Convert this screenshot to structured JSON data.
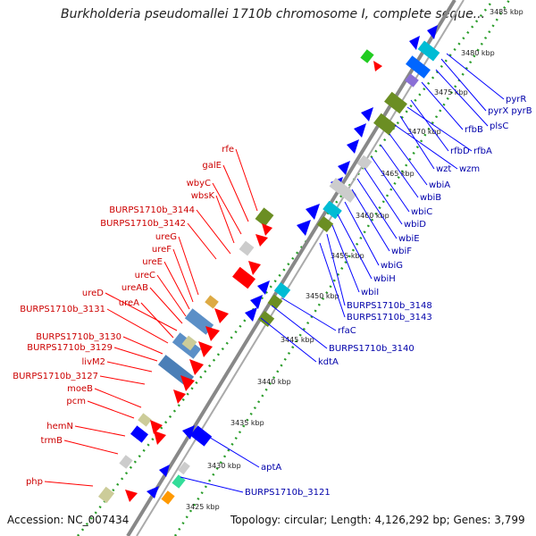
{
  "title": "Burkholderia pseudomallei 1710b chromosome I, complete seque...",
  "footer": {
    "accession": "Accession: NC_007434",
    "topology": "Topology: circular; Length: 4,126,292 bp; Genes: 3,799"
  },
  "ticks": [
    "3485 kbp",
    "3480 kbp",
    "3475 kbp",
    "3470 kbp",
    "3465 kbp",
    "3460 kbp",
    "3455 kbp",
    "3450 kbp",
    "3445 kbp",
    "3440 kbp",
    "3435 kbp",
    "3430 kbp",
    "3425 kbp"
  ],
  "left_labels": [
    "rfe",
    "galE",
    "wbyC",
    "wbsK",
    "BURPS1710b_3144",
    "BURPS1710b_3142",
    "ureG",
    "ureF",
    "ureE",
    "ureC",
    "ureAB",
    "ureD",
    "ureA",
    "BURPS1710b_3131",
    "BURPS1710b_3130",
    "BURPS1710b_3129",
    "livM2",
    "BURPS1710b_3127",
    "moeB",
    "pcm",
    "hemN",
    "trmB",
    "php"
  ],
  "right_labels": [
    "pyrR",
    "pyrX pyrB",
    "plsC",
    "rfbB",
    "rfbD",
    "rfbA",
    "wzt",
    "wzm",
    "wbiA",
    "wbiB",
    "wbiC",
    "wbiD",
    "wbiE",
    "wbiF",
    "wbiG",
    "wbiH",
    "wbiI",
    "BURPS1710b_3148",
    "BURPS1710b_3143",
    "rfaC",
    "BURPS1710b_3140",
    "kdtA",
    "aptA",
    "BURPS1710b_3121"
  ],
  "colors": {
    "forward": "#ff0000",
    "reverse": "#0000ff",
    "label_left": "#cc0000",
    "label_right": "#0000aa",
    "backbone": "#888888",
    "tick": "#228b22"
  }
}
